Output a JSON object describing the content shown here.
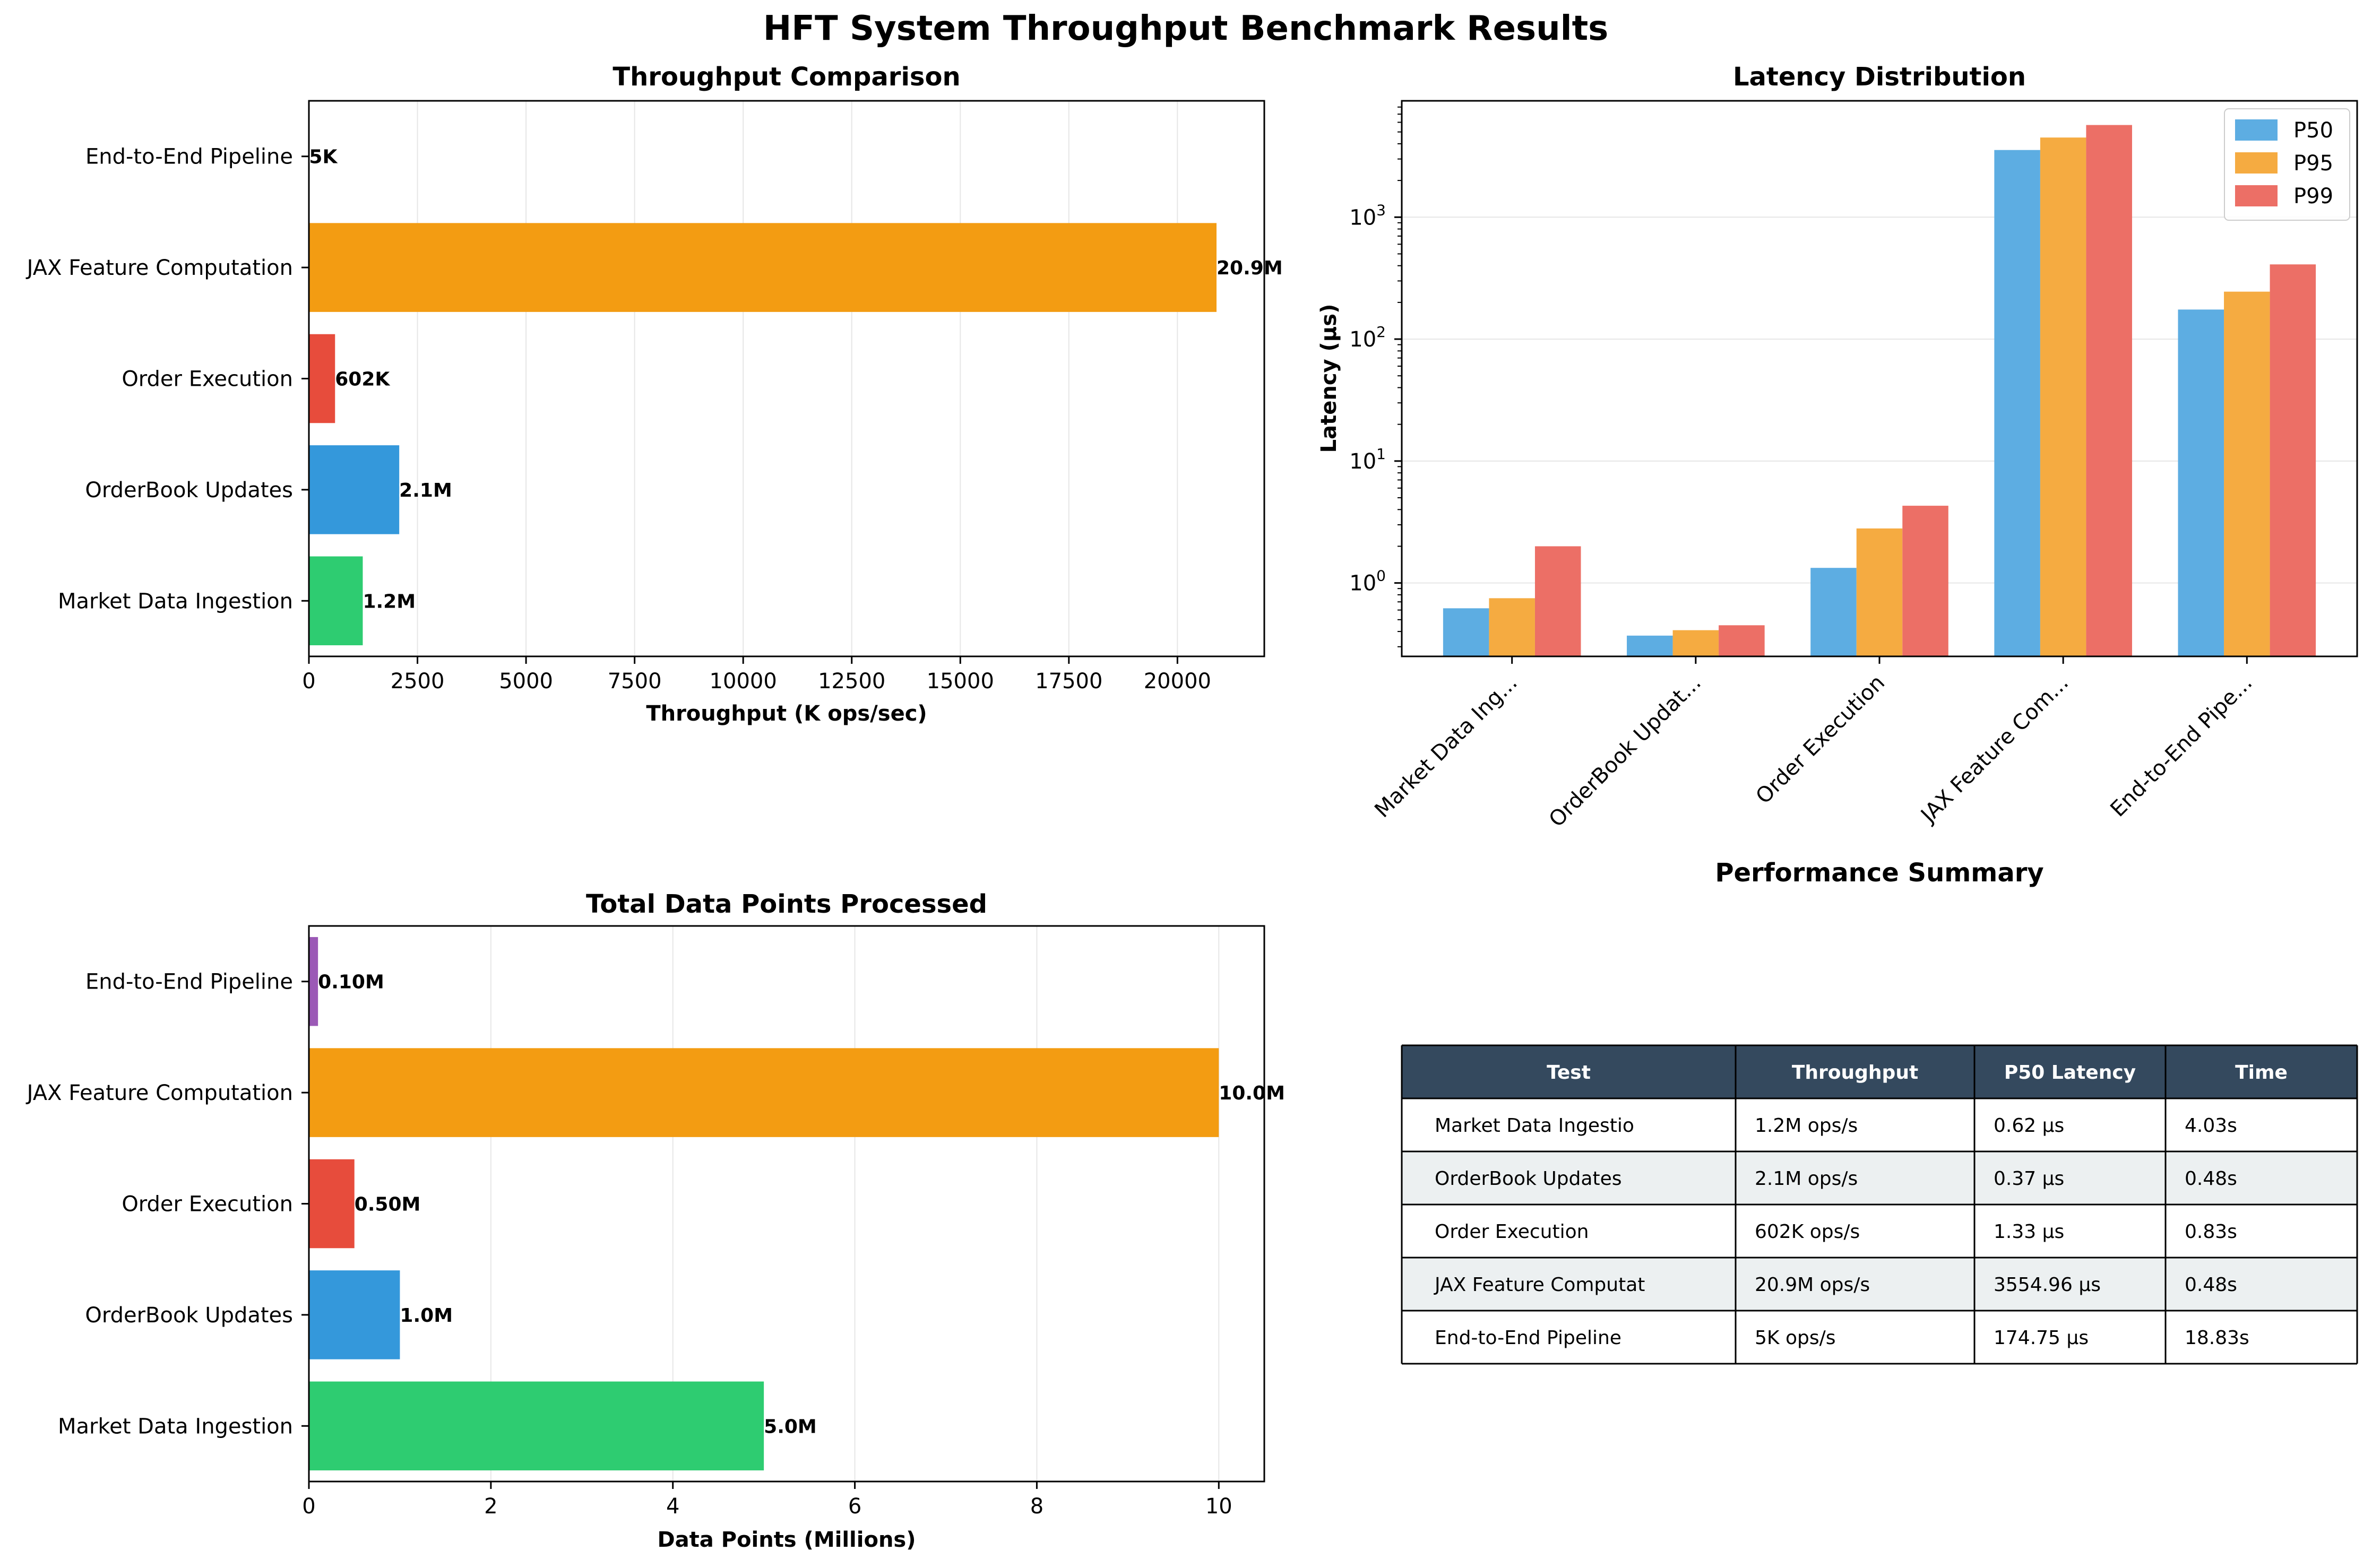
{
  "figure": {
    "title": "HFT System Throughput Benchmark Results"
  },
  "colors": {
    "green": "#2ecc71",
    "blue": "#3498db",
    "red": "#e74c3c",
    "orange": "#f39c12",
    "purple": "#9b59b6",
    "p50": "#5dade2",
    "p95": "#f5ab41",
    "p99": "#ec6f66",
    "table_header": "#34495e",
    "table_alt_row": "#ecf0f1",
    "grid": "#e6e6e6"
  },
  "chart_data": [
    {
      "type": "bar",
      "orientation": "horizontal",
      "title": "Throughput Comparison",
      "xlabel": "Throughput (K ops/sec)",
      "ylabel": "",
      "categories": [
        "Market Data Ingestion",
        "OrderBook Updates",
        "Order Execution",
        "JAX Feature Computation",
        "End-to-End Pipeline"
      ],
      "values": [
        1240,
        2080,
        602,
        20900,
        5
      ],
      "value_labels": [
        "1.2M",
        "2.1M",
        "602K",
        "20.9M",
        "5K"
      ],
      "bar_colors": [
        "green",
        "blue",
        "red",
        "orange",
        "purple"
      ],
      "xlim": [
        0,
        22000
      ],
      "xticks": [
        0,
        2500,
        5000,
        7500,
        10000,
        12500,
        15000,
        17500,
        20000
      ],
      "grid": "x"
    },
    {
      "type": "bar",
      "orientation": "vertical",
      "scale": "log",
      "title": "Latency Distribution",
      "xlabel": "",
      "ylabel": "Latency (µs)",
      "categories": [
        "Market Data Ing...",
        "OrderBook Updat...",
        "Order Execution",
        "JAX Feature Com...",
        "End-to-End Pipe..."
      ],
      "series": [
        {
          "name": "P50",
          "color": "p50",
          "values": [
            0.62,
            0.37,
            1.33,
            3554.96,
            174.75
          ]
        },
        {
          "name": "P95",
          "color": "p95",
          "values": [
            0.75,
            0.41,
            2.8,
            4500,
            245
          ]
        },
        {
          "name": "P99",
          "color": "p99",
          "values": [
            2.0,
            0.45,
            4.3,
            5700,
            410
          ]
        }
      ],
      "ylim": [
        0.25,
        9000
      ],
      "yticks": [
        {
          "value": 1,
          "base": "10",
          "exp": "0"
        },
        {
          "value": 10,
          "base": "10",
          "exp": "1"
        },
        {
          "value": 100,
          "base": "10",
          "exp": "2"
        },
        {
          "value": 1000,
          "base": "10",
          "exp": "3"
        }
      ],
      "legend": "top-right",
      "grid": "y"
    },
    {
      "type": "bar",
      "orientation": "horizontal",
      "title": "Total Data Points Processed",
      "xlabel": "Data Points (Millions)",
      "ylabel": "",
      "categories": [
        "Market Data Ingestion",
        "OrderBook Updates",
        "Order Execution",
        "JAX Feature Computation",
        "End-to-End Pipeline"
      ],
      "values": [
        5.0,
        1.0,
        0.5,
        10.0,
        0.1
      ],
      "value_labels": [
        "5.0M",
        "1.0M",
        "0.50M",
        "10.0M",
        "0.10M"
      ],
      "bar_colors": [
        "green",
        "blue",
        "red",
        "orange",
        "purple"
      ],
      "xlim": [
        0,
        10.5
      ],
      "xticks": [
        0,
        2,
        4,
        6,
        8,
        10
      ],
      "grid": "x"
    },
    {
      "type": "table",
      "title": "Performance Summary",
      "columns": [
        "Test",
        "Throughput",
        "P50 Latency",
        "Time"
      ],
      "rows": [
        [
          "Market Data Ingestio",
          "1.2M ops/s",
          "0.62 µs",
          "4.03s"
        ],
        [
          "OrderBook Updates",
          "2.1M ops/s",
          "0.37 µs",
          "0.48s"
        ],
        [
          "Order Execution",
          "602K ops/s",
          "1.33 µs",
          "0.83s"
        ],
        [
          "JAX Feature Computat",
          "20.9M ops/s",
          "3554.96 µs",
          "0.48s"
        ],
        [
          "End-to-End Pipeline",
          "5K ops/s",
          "174.75 µs",
          "18.83s"
        ]
      ]
    }
  ]
}
